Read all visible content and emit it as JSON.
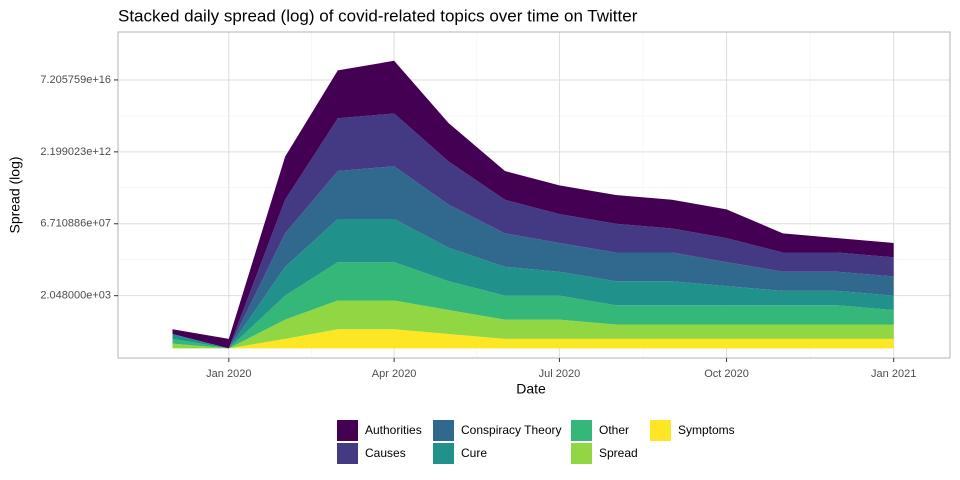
{
  "chart_data": {
    "type": "stacked-area",
    "title": "Stacked daily spread (log) of covid-related topics over time on Twitter",
    "x_label": "Date",
    "y_label": "Spread (log)",
    "log_scale": "y",
    "log_base": 2,
    "grid": true,
    "legend": "bottom",
    "x": [
      "2019-12",
      "2020-01",
      "2020-02",
      "2020-03",
      "2020-04",
      "2020-05",
      "2020-06",
      "2020-07",
      "2020-08",
      "2020-09",
      "2020-10",
      "2020-11",
      "2020-12",
      "2021-01"
    ],
    "xlim": [
      "2019-11",
      "2021-02"
    ],
    "xticks": [
      {
        "value": "2020-01",
        "label": "Jan 2020"
      },
      {
        "value": "2020-04",
        "label": "Apr 2020"
      },
      {
        "value": "2020-07",
        "label": "Jul 2020"
      },
      {
        "value": "2020-10",
        "label": "Oct 2020"
      },
      {
        "value": "2021-01",
        "label": "Jan 2021"
      }
    ],
    "ylim": [
      0.25,
      73786976294838206464
    ],
    "yticks": [
      {
        "value": 2048,
        "label": "2.048000e+03"
      },
      {
        "value": 67108864,
        "label": "6.710886e+07"
      },
      {
        "value": 2199023255552,
        "label": "2.199023e+12"
      },
      {
        "value": 72057594037927936,
        "label": "7.205759e+16"
      }
    ],
    "series": [
      {
        "name": "Symptoms",
        "color": "#fde725",
        "values": [
          1,
          1,
          4,
          16,
          16,
          8,
          4,
          4,
          4,
          4,
          4,
          4,
          4,
          4
        ]
      },
      {
        "name": "Spread",
        "color": "#90d743",
        "values": [
          2,
          1,
          16,
          64,
          64,
          32,
          16,
          16,
          8,
          8,
          8,
          8,
          8,
          8
        ]
      },
      {
        "name": "Other",
        "color": "#35b779",
        "values": [
          2,
          1,
          32,
          256,
          256,
          64,
          32,
          32,
          16,
          16,
          16,
          16,
          16,
          8
        ]
      },
      {
        "name": "Cure",
        "color": "#21918c",
        "values": [
          2,
          1,
          64,
          512,
          512,
          128,
          64,
          32,
          32,
          32,
          16,
          8,
          8,
          8
        ]
      },
      {
        "name": "Conspiracy Theory",
        "color": "#31688e",
        "values": [
          1,
          1,
          128,
          1024,
          2048,
          512,
          128,
          64,
          64,
          64,
          32,
          16,
          16,
          16
        ]
      },
      {
        "name": "Causes",
        "color": "#443983",
        "values": [
          1,
          1,
          128,
          2048,
          2048,
          512,
          128,
          64,
          64,
          32,
          32,
          16,
          16,
          16
        ]
      },
      {
        "name": "Authorities",
        "color": "#440154",
        "values": [
          2,
          4,
          512,
          1024,
          2048,
          256,
          64,
          64,
          64,
          64,
          64,
          16,
          8,
          8
        ]
      }
    ]
  }
}
